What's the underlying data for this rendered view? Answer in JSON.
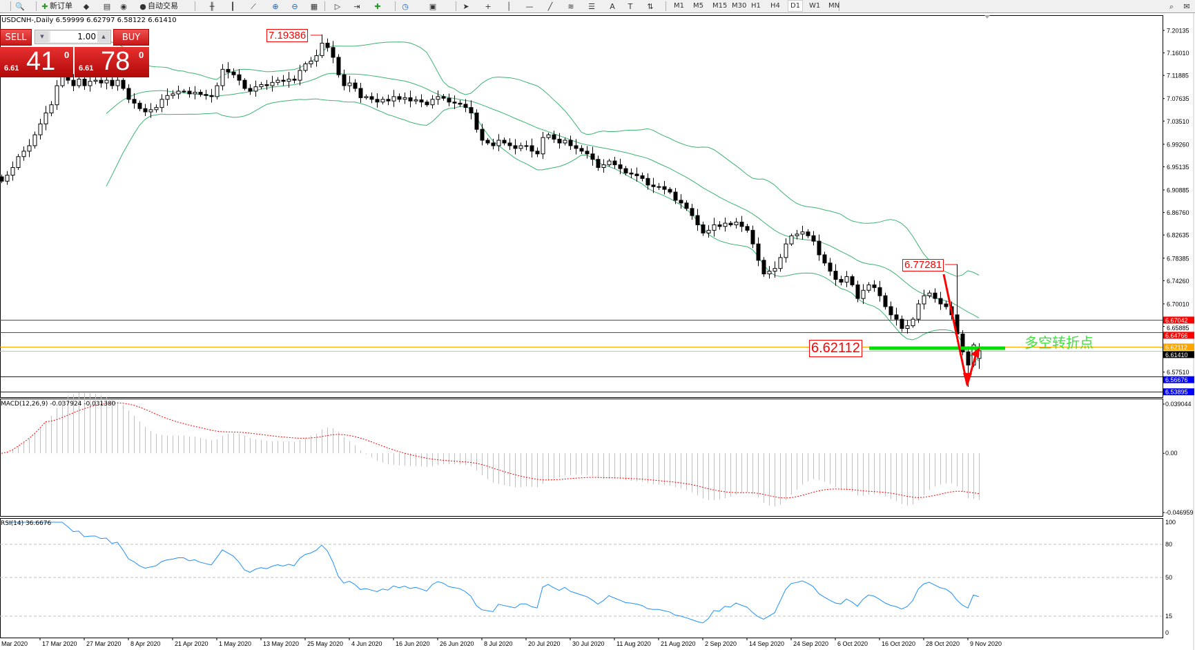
{
  "toolbar": {
    "new_order_label": "新订单",
    "auto_trading_label": "自动交易",
    "timeframes": [
      "M1",
      "M5",
      "M15",
      "M30",
      "H1",
      "H4",
      "D1",
      "W1",
      "MN"
    ],
    "active_timeframe": "D1",
    "icons": [
      "zoom-window-icon",
      "new-order-icon",
      "market-watch-icon",
      "terminal-icon",
      "signal-icon",
      "auto-trading-icon",
      "bar-chart-icon",
      "candlestick-icon",
      "line-chart-icon",
      "zoom-in-icon",
      "zoom-out-icon",
      "tile-windows-icon",
      "auto-scroll-icon",
      "chart-shift-icon",
      "indicators-icon",
      "periods-icon",
      "templates-icon",
      "cursor-icon",
      "crosshair-icon",
      "vertical-line-icon",
      "horizontal-line-icon",
      "trendline-icon",
      "fibonacci-icon",
      "channel-icon",
      "text-icon",
      "text-label-icon",
      "arrows-icon",
      "search-icon",
      "chat-icon"
    ]
  },
  "chart_title": "USDCNH-,Daily  6.59999 6.62797 6.58122 6.61410",
  "trade_panel": {
    "sell_label": "SELL",
    "buy_label": "BUY",
    "lot_value": "1.00",
    "sell_price_small": "6.61",
    "sell_price_big": "41",
    "sell_price_sup": "0",
    "buy_price_small": "6.61",
    "buy_price_big": "78",
    "buy_price_sup": "0"
  },
  "annotations": {
    "high_label": "7.19386",
    "recent_high_label": "6.77281",
    "pivot_label": "6.62112",
    "pivot_text": "多空转折点"
  },
  "macd_title": "MACD(12,26,9) -0.037924 -0.031380",
  "rsi_title": "RSI(14) 36.6676",
  "colors": {
    "bollinger": "#3cb371",
    "macd_hist": "#c0c0c0",
    "macd_signal": "#ff0000",
    "rsi": "#1e90ff",
    "arrow": "#ff0000",
    "pivot_line": "#00e000",
    "pivot_text": "#3de23d"
  },
  "chart_data": {
    "type": "candlestick",
    "symbol": "USDCNH-",
    "timeframe": "Daily",
    "ylim": [
      6.5291,
      7.2292
    ],
    "y_ticks": [
      "7.20135",
      "7.16010",
      "7.11885",
      "7.07635",
      "7.03510",
      "6.99260",
      "6.95135",
      "6.90885",
      "6.86760",
      "6.82635",
      "6.78385",
      "6.74260",
      "6.70010",
      "6.65885",
      "6.57510"
    ],
    "x_tick_labels": [
      "Mar 2020",
      "17 Mar 2020",
      "27 Mar 2020",
      "8 Apr 2020",
      "21 Apr 2020",
      "1 May 2020",
      "13 May 2020",
      "25 May 2020",
      "4 Jun 2020",
      "16 Jun 2020",
      "26 Jun 2020",
      "8 Jul 2020",
      "20 Jul 2020",
      "30 Jul 2020",
      "11 Aug 2020",
      "21 Aug 2020",
      "2 Sep 2020",
      "14 Sep 2020",
      "24 Sep 2020",
      "6 Oct 2020",
      "16 Oct 2020",
      "28 Oct 2020",
      "9 Nov 2020"
    ],
    "closes": [
      6.925,
      6.936,
      6.95,
      6.97,
      6.98,
      6.99,
      7.01,
      7.03,
      7.05,
      7.065,
      7.1,
      7.118,
      7.11,
      7.1,
      7.112,
      7.1,
      7.108,
      7.11,
      7.105,
      7.11,
      7.1,
      7.11,
      7.095,
      7.075,
      7.068,
      7.058,
      7.052,
      7.056,
      7.06,
      7.075,
      7.082,
      7.085,
      7.09,
      7.09,
      7.085,
      7.088,
      7.084,
      7.082,
      7.08,
      7.1,
      7.13,
      7.125,
      7.12,
      7.11,
      7.095,
      7.09,
      7.098,
      7.102,
      7.1,
      7.106,
      7.11,
      7.108,
      7.112,
      7.11,
      7.128,
      7.14,
      7.145,
      7.155,
      7.178,
      7.17,
      7.152,
      7.12,
      7.1,
      7.105,
      7.095,
      7.078,
      7.08,
      7.075,
      7.07,
      7.075,
      7.072,
      7.08,
      7.075,
      7.078,
      7.072,
      7.074,
      7.07,
      7.065,
      7.075,
      7.08,
      7.077,
      7.07,
      7.068,
      7.066,
      7.06,
      7.05,
      7.02,
      7.0,
      6.995,
      6.99,
      7.0,
      6.995,
      6.99,
      6.985,
      6.99,
      6.99,
      6.98,
      6.975,
      7.005,
      7.01,
      7.002,
      6.995,
      7.0,
      6.99,
      6.985,
      6.98,
      6.975,
      6.965,
      6.95,
      6.955,
      6.962,
      6.955,
      6.948,
      6.94,
      6.938,
      6.935,
      6.93,
      6.918,
      6.915,
      6.915,
      6.91,
      6.905,
      6.89,
      6.885,
      6.875,
      6.862,
      6.845,
      6.83,
      6.835,
      6.845,
      6.842,
      6.848,
      6.845,
      6.85,
      6.842,
      6.835,
      6.81,
      6.78,
      6.755,
      6.76,
      6.765,
      6.785,
      6.81,
      6.825,
      6.828,
      6.832,
      6.825,
      6.815,
      6.79,
      6.775,
      6.76,
      6.745,
      6.74,
      6.75,
      6.735,
      6.71,
      6.725,
      6.735,
      6.73,
      6.715,
      6.695,
      6.68,
      6.672,
      6.655,
      6.66,
      6.672,
      6.7,
      6.715,
      6.72,
      6.71,
      6.7,
      6.695,
      6.68,
      6.645,
      6.612,
      6.588,
      6.625,
      6.6141
    ],
    "last_bar_ohlc": [
      6.59999,
      6.62797,
      6.58122,
      6.6141
    ],
    "high_overrides": {
      "58": 7.19386,
      "173": 6.77281
    },
    "low_overrides": {
      "175": 6.548
    },
    "horizontal_levels": [
      {
        "price": 6.67042,
        "label": "6.67042",
        "color": "#ff0000"
      },
      {
        "price": 6.64766,
        "label": "6.64766",
        "color": "#ff0000"
      },
      {
        "price": 6.62112,
        "label": "6.62112",
        "color": "#ffa500"
      },
      {
        "price": 6.6141,
        "label": "6.61410",
        "color": "#c0c0c0",
        "label_bg": "#000000"
      },
      {
        "price": 6.56676,
        "label": "6.56676",
        "color": "#0000ff"
      },
      {
        "price": 6.53895,
        "label": "6.53895",
        "color": "#0000ff"
      }
    ],
    "indicators": {
      "bollinger": {
        "period": 20,
        "deviation": 2
      },
      "macd": {
        "fast": 12,
        "slow": 26,
        "signal": 9,
        "ylim": [
          -0.0497,
          0.0434
        ],
        "ticks": [
          "0.039044",
          "0.00",
          "-0.046959"
        ]
      },
      "rsi": {
        "period": 14,
        "ylim": [
          -4.4,
          103.75
        ],
        "ticks": [
          "100",
          "80",
          "50",
          "15",
          "0"
        ],
        "levels": [
          80,
          50,
          15
        ]
      }
    }
  }
}
